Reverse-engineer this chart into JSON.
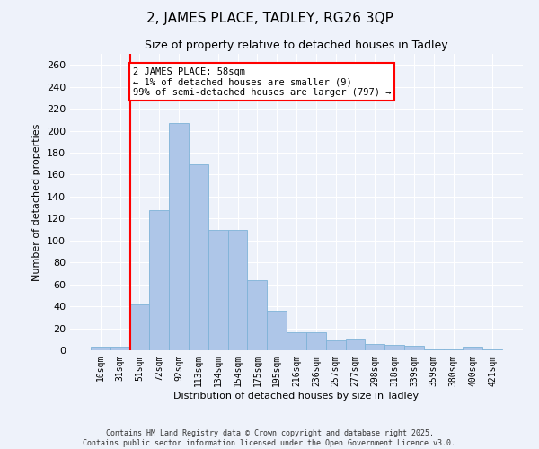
{
  "title": "2, JAMES PLACE, TADLEY, RG26 3QP",
  "subtitle": "Size of property relative to detached houses in Tadley",
  "xlabel": "Distribution of detached houses by size in Tadley",
  "ylabel": "Number of detached properties",
  "categories": [
    "10sqm",
    "31sqm",
    "51sqm",
    "72sqm",
    "92sqm",
    "113sqm",
    "134sqm",
    "154sqm",
    "175sqm",
    "195sqm",
    "216sqm",
    "236sqm",
    "257sqm",
    "277sqm",
    "298sqm",
    "318sqm",
    "339sqm",
    "359sqm",
    "380sqm",
    "400sqm",
    "421sqm"
  ],
  "values": [
    3,
    3,
    42,
    128,
    207,
    169,
    110,
    110,
    64,
    36,
    16,
    16,
    9,
    10,
    6,
    5,
    4,
    1,
    1,
    3,
    1
  ],
  "bar_color": "#aec6e8",
  "bar_edge_color": "#7fb3d8",
  "vline_color": "red",
  "vline_x_index": 2,
  "annotation_text": "2 JAMES PLACE: 58sqm\n← 1% of detached houses are smaller (9)\n99% of semi-detached houses are larger (797) →",
  "annotation_box_color": "white",
  "annotation_box_edge_color": "red",
  "ylim": [
    0,
    270
  ],
  "yticks": [
    0,
    20,
    40,
    60,
    80,
    100,
    120,
    140,
    160,
    180,
    200,
    220,
    240,
    260
  ],
  "background_color": "#eef2fa",
  "footer_line1": "Contains HM Land Registry data © Crown copyright and database right 2025.",
  "footer_line2": "Contains public sector information licensed under the Open Government Licence v3.0."
}
